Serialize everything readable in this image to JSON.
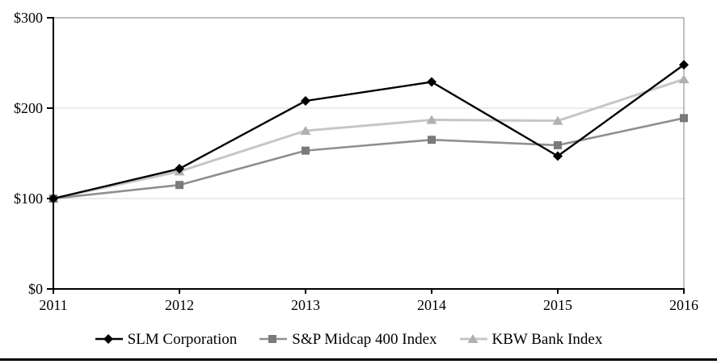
{
  "chart_data": {
    "type": "line",
    "x_labels": [
      "2011",
      "2012",
      "2013",
      "2014",
      "2015",
      "2016"
    ],
    "y_ticks": [
      {
        "value": 0,
        "label": "$0"
      },
      {
        "value": 100,
        "label": "$100"
      },
      {
        "value": 200,
        "label": "$200"
      },
      {
        "value": 300,
        "label": "$300"
      }
    ],
    "ylim": [
      0,
      300
    ],
    "grid": "horizontal",
    "legend_position": "bottom",
    "series": [
      {
        "name": "SLM Corporation",
        "marker": "diamond",
        "line_color": "#000000",
        "marker_color": "#000000",
        "line_width": 2.4,
        "values": [
          100,
          133,
          208,
          229,
          147,
          248
        ]
      },
      {
        "name": "S&P Midcap 400 Index",
        "marker": "square",
        "line_color": "#8f8f8f",
        "marker_color": "#7a7a7a",
        "line_width": 2.6,
        "values": [
          100,
          115,
          153,
          165,
          159,
          189
        ]
      },
      {
        "name": "KBW Bank Index",
        "marker": "triangle",
        "line_color": "#c6c6c6",
        "marker_color": "#b0b0b0",
        "line_width": 3,
        "values": [
          100,
          130,
          175,
          187,
          186,
          232
        ]
      }
    ],
    "colors": {
      "gridline": "#d9d9d9",
      "plot_border": "#808080",
      "axis": "#000000",
      "label": "#000000",
      "background": "#ffffff"
    }
  }
}
